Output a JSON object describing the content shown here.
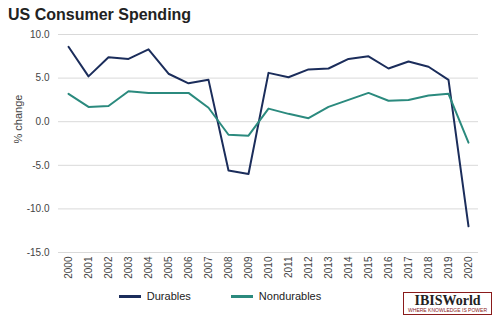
{
  "chart_data": {
    "type": "line",
    "title": "US Consumer Spending",
    "y_label": "% change",
    "categories": [
      "2000",
      "2001",
      "2002",
      "2003",
      "2004",
      "2005",
      "2006",
      "2007",
      "2008",
      "2009",
      "2010",
      "2011",
      "2012",
      "2013",
      "2014",
      "2015",
      "2016",
      "2017",
      "2018",
      "2019",
      "2020"
    ],
    "series": [
      {
        "name": "Durables",
        "color": "#1b2d5b",
        "values": [
          8.6,
          5.2,
          7.4,
          7.2,
          8.3,
          5.5,
          4.4,
          4.8,
          -5.6,
          -6.0,
          5.6,
          5.1,
          6.0,
          6.1,
          7.2,
          7.5,
          6.1,
          6.9,
          6.3,
          4.8,
          -12.0
        ]
      },
      {
        "name": "Nondurables",
        "color": "#2b8a7e",
        "values": [
          3.2,
          1.7,
          1.8,
          3.5,
          3.3,
          3.3,
          3.3,
          1.6,
          -1.5,
          -1.6,
          1.5,
          0.9,
          0.4,
          1.7,
          2.5,
          3.3,
          2.4,
          2.5,
          3.0,
          3.2,
          -2.4
        ]
      }
    ],
    "ylim": [
      -15,
      10
    ],
    "yticks": [
      {
        "value": -15,
        "label": "-15.0"
      },
      {
        "value": -10,
        "label": "-10.0"
      },
      {
        "value": -5,
        "label": "-5.0"
      },
      {
        "value": 0,
        "label": "0.0"
      },
      {
        "value": 5,
        "label": "5.0"
      },
      {
        "value": 10,
        "label": "10.0"
      }
    ],
    "grid": true,
    "legend": "bottom",
    "annotations": [
      "IBISWorld",
      "Where Knowledge is Power"
    ]
  }
}
